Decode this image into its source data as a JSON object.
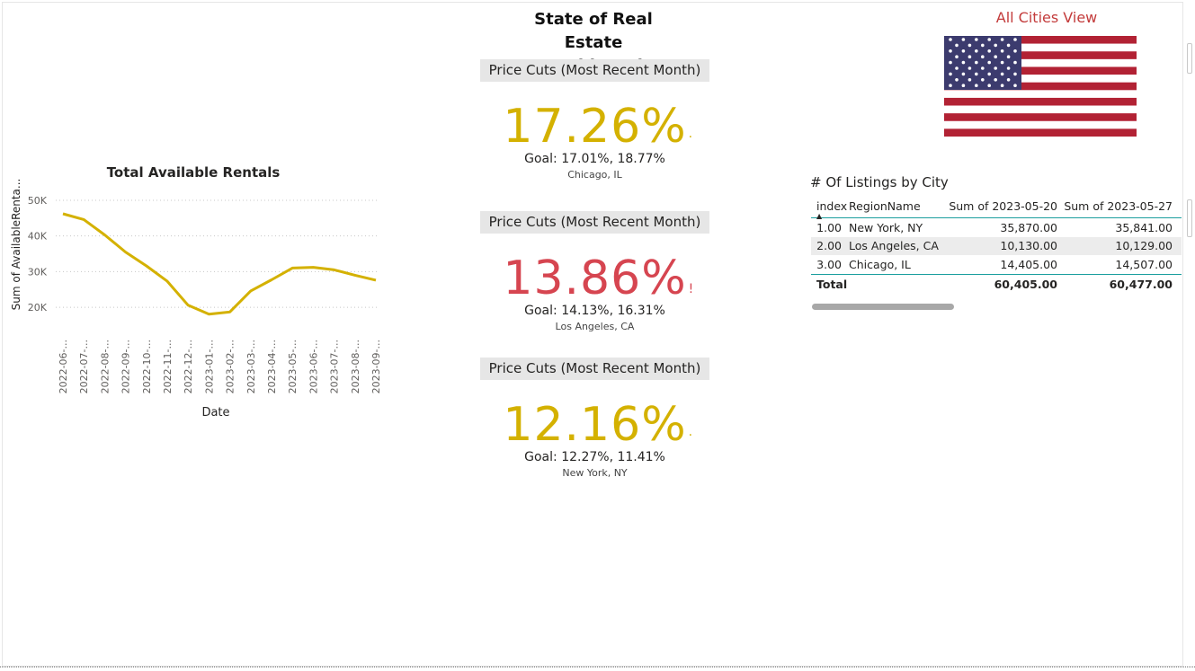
{
  "dashboard": {
    "title_line1": "State of Real Estate",
    "title_line2": "Dashboard"
  },
  "chart": {
    "title": "Total Available Rentals",
    "ylabel": "Sum of AvailableRenta...",
    "xlabel": "Date",
    "line_color": "#d4b100"
  },
  "chart_data": {
    "type": "line",
    "title": "Total Available Rentals",
    "xlabel": "Date",
    "ylabel": "Sum of AvailableRenta...",
    "x": [
      "2022-06-...",
      "2022-07-...",
      "2022-08-...",
      "2022-09-...",
      "2022-10-...",
      "2022-11-...",
      "2022-12-...",
      "2023-01-...",
      "2023-02-...",
      "2023-03-...",
      "2023-04-...",
      "2023-05-...",
      "2023-06-...",
      "2023-07-...",
      "2023-08-...",
      "2023-09-..."
    ],
    "values": [
      46200,
      44600,
      40300,
      35500,
      31600,
      27300,
      20600,
      18100,
      18700,
      24600,
      27700,
      31000,
      31200,
      30500,
      29000,
      27600
    ],
    "yticks": [
      "20K",
      "30K",
      "40K",
      "50K"
    ],
    "ytick_values": [
      20000,
      30000,
      40000,
      50000
    ],
    "ylim": [
      15000,
      52000
    ],
    "grid": true
  },
  "kpis": [
    {
      "header": "Price Cuts (Most Recent Month)",
      "value": "17.26%",
      "mark": "·",
      "goal": "Goal: 17.01%, 18.77%",
      "city": "Chicago, IL",
      "color": "#d4b100"
    },
    {
      "header": "Price Cuts (Most Recent Month)",
      "value": "13.86%",
      "mark": "!",
      "goal": "Goal: 14.13%, 16.31%",
      "city": "Los Angeles, CA",
      "color": "#d64550"
    },
    {
      "header": "Price Cuts (Most Recent Month)",
      "value": "12.16%",
      "mark": "·",
      "goal": "Goal: 12.27%, 11.41%",
      "city": "New York, NY",
      "color": "#d4b100"
    }
  ],
  "flag": {
    "label": "All Cities View",
    "icon": "us-flag-icon"
  },
  "table": {
    "title": "# Of Listings by City",
    "headers": [
      "index",
      "RegionName",
      "Sum of 2023-05-20",
      "Sum of 2023-05-27"
    ],
    "rows": [
      [
        "1.00",
        "New York, NY",
        "35,870.00",
        "35,841.00"
      ],
      [
        "2.00",
        "Los Angeles, CA",
        "10,130.00",
        "10,129.00"
      ],
      [
        "3.00",
        "Chicago, IL",
        "14,405.00",
        "14,507.00"
      ]
    ],
    "total": [
      "Total",
      "",
      "60,405.00",
      "60,477.00"
    ]
  }
}
